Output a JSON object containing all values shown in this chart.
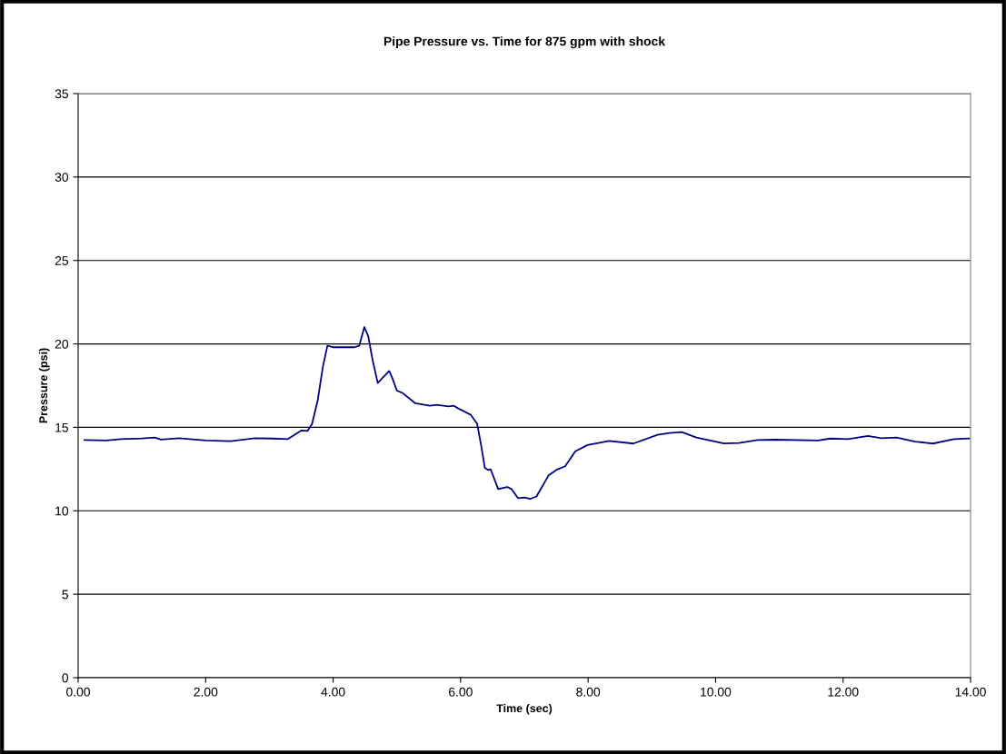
{
  "chart_data": {
    "type": "line",
    "title": "Pipe Pressure vs. Time for 875 gpm with shock",
    "xlabel": "Time (sec)",
    "ylabel": "Pressure (psi)",
    "xlim": [
      0,
      14
    ],
    "xticks": [
      {
        "value": 0,
        "label": "0.00"
      },
      {
        "value": 2,
        "label": "2.00"
      },
      {
        "value": 4,
        "label": "4.00"
      },
      {
        "value": 6,
        "label": "6.00"
      },
      {
        "value": 8,
        "label": "8.00"
      },
      {
        "value": 10,
        "label": "10.00"
      },
      {
        "value": 12,
        "label": "12.00"
      },
      {
        "value": 14,
        "label": "14.00"
      }
    ],
    "ylim": [
      0,
      35
    ],
    "yticks": [
      0,
      5,
      10,
      15,
      20,
      25,
      30,
      35
    ],
    "grid": "y",
    "marker": "none",
    "line_style": "solid",
    "series": [
      {
        "color": "#000080",
        "x": [
          0.1,
          0.44,
          0.67,
          1.0,
          1.2,
          1.3,
          1.58,
          2.01,
          2.39,
          2.77,
          3.05,
          3.29,
          3.5,
          3.6,
          3.67,
          3.76,
          3.84,
          3.91,
          4.0,
          4.33,
          4.41,
          4.49,
          4.55,
          4.62,
          4.7,
          4.79,
          4.88,
          4.93,
          5.0,
          5.09,
          5.29,
          5.52,
          5.62,
          5.81,
          5.89,
          5.97,
          6.16,
          6.26,
          6.33,
          6.38,
          6.43,
          6.47,
          6.59,
          6.73,
          6.8,
          6.9,
          7.0,
          7.09,
          7.19,
          7.38,
          7.52,
          7.64,
          7.8,
          7.99,
          8.18,
          8.33,
          8.71,
          9.09,
          9.28,
          9.47,
          9.7,
          10.13,
          10.37,
          10.66,
          10.94,
          11.61,
          11.8,
          12.08,
          12.39,
          12.6,
          12.84,
          13.13,
          13.41,
          13.74,
          13.98
        ],
        "values": [
          14.24,
          14.21,
          14.3,
          14.34,
          14.39,
          14.27,
          14.35,
          14.21,
          14.17,
          14.35,
          14.33,
          14.3,
          14.81,
          14.79,
          15.21,
          16.66,
          18.65,
          19.89,
          19.8,
          19.8,
          19.89,
          21.01,
          20.47,
          19.02,
          17.66,
          18.02,
          18.38,
          17.94,
          17.2,
          17.06,
          16.44,
          16.3,
          16.35,
          16.26,
          16.3,
          16.12,
          15.75,
          15.21,
          13.75,
          12.57,
          12.45,
          12.49,
          11.3,
          11.43,
          11.3,
          10.76,
          10.8,
          10.71,
          10.86,
          12.12,
          12.49,
          12.67,
          13.57,
          13.94,
          14.08,
          14.19,
          14.03,
          14.55,
          14.66,
          14.72,
          14.39,
          14.04,
          14.06,
          14.24,
          14.26,
          14.21,
          14.33,
          14.29,
          14.48,
          14.35,
          14.39,
          14.15,
          14.03,
          14.3,
          14.33
        ]
      }
    ]
  }
}
